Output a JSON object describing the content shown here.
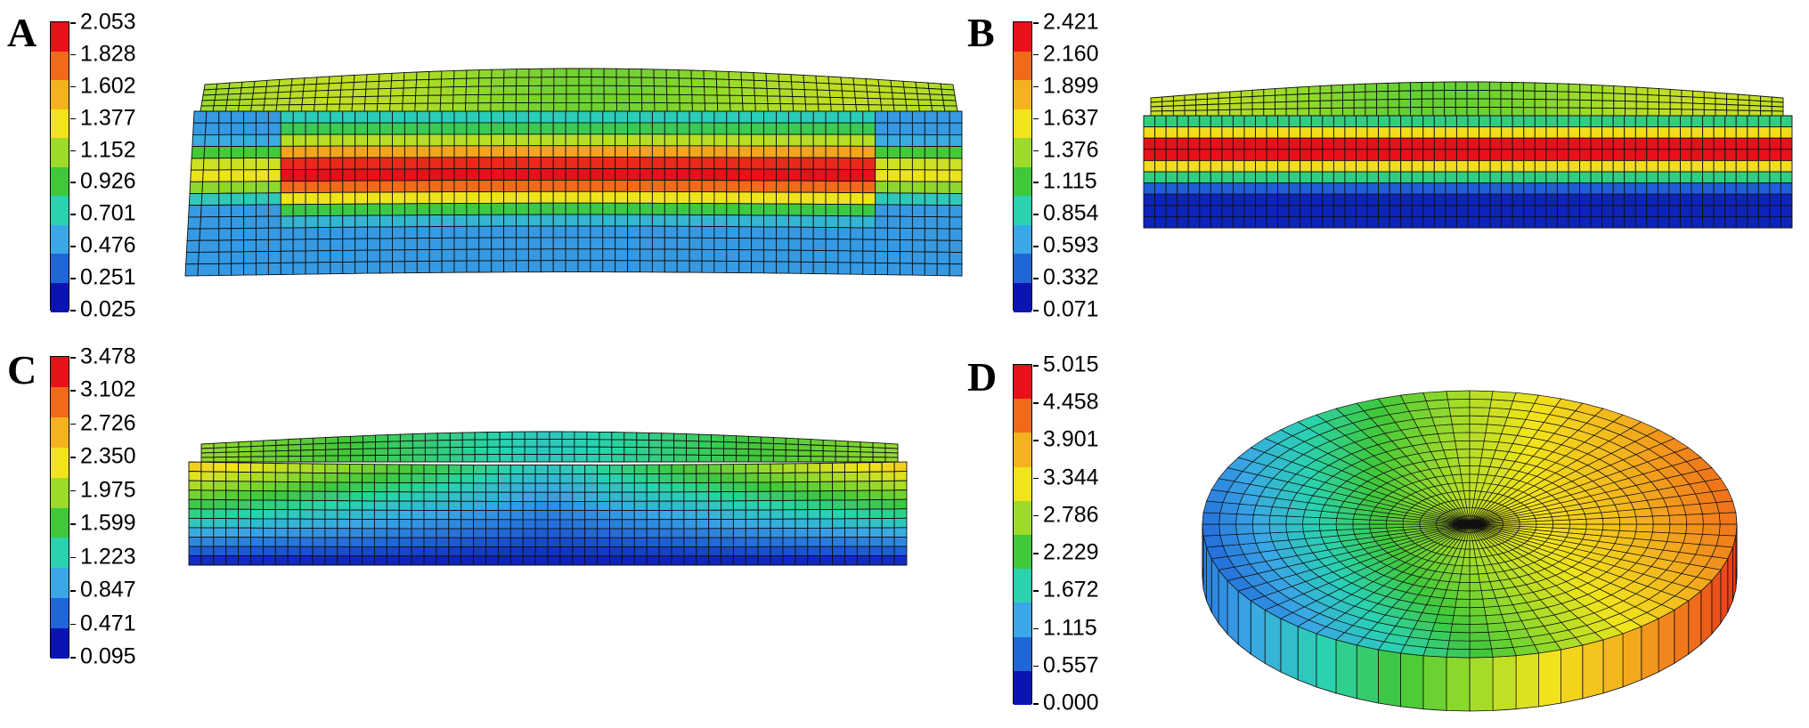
{
  "panels": [
    {
      "letter": "A",
      "ticks": [
        "2.053",
        "1.828",
        "1.602",
        "1.377",
        "1.152",
        "0.926",
        "0.701",
        "0.476",
        "0.251",
        "0.025"
      ]
    },
    {
      "letter": "B",
      "ticks": [
        "2.421",
        "2.160",
        "1.899",
        "1.637",
        "1.376",
        "1.115",
        "0.854",
        "0.593",
        "0.332",
        "0.071"
      ]
    },
    {
      "letter": "C",
      "ticks": [
        "3.478",
        "3.102",
        "2.726",
        "2.350",
        "1.975",
        "1.599",
        "1.223",
        "0.847",
        "0.471",
        "0.095"
      ]
    },
    {
      "letter": "D",
      "ticks": [
        "5.015",
        "4.458",
        "3.901",
        "3.344",
        "2.786",
        "2.229",
        "1.672",
        "1.115",
        "0.557",
        "0.000"
      ]
    }
  ],
  "colorscale": [
    "#e8101a",
    "#f06a1a",
    "#f3b21e",
    "#f2e41c",
    "#9ddb2a",
    "#3fc83a",
    "#2ad2b0",
    "#3aa7e6",
    "#2166d9",
    "#0a14b3"
  ]
}
